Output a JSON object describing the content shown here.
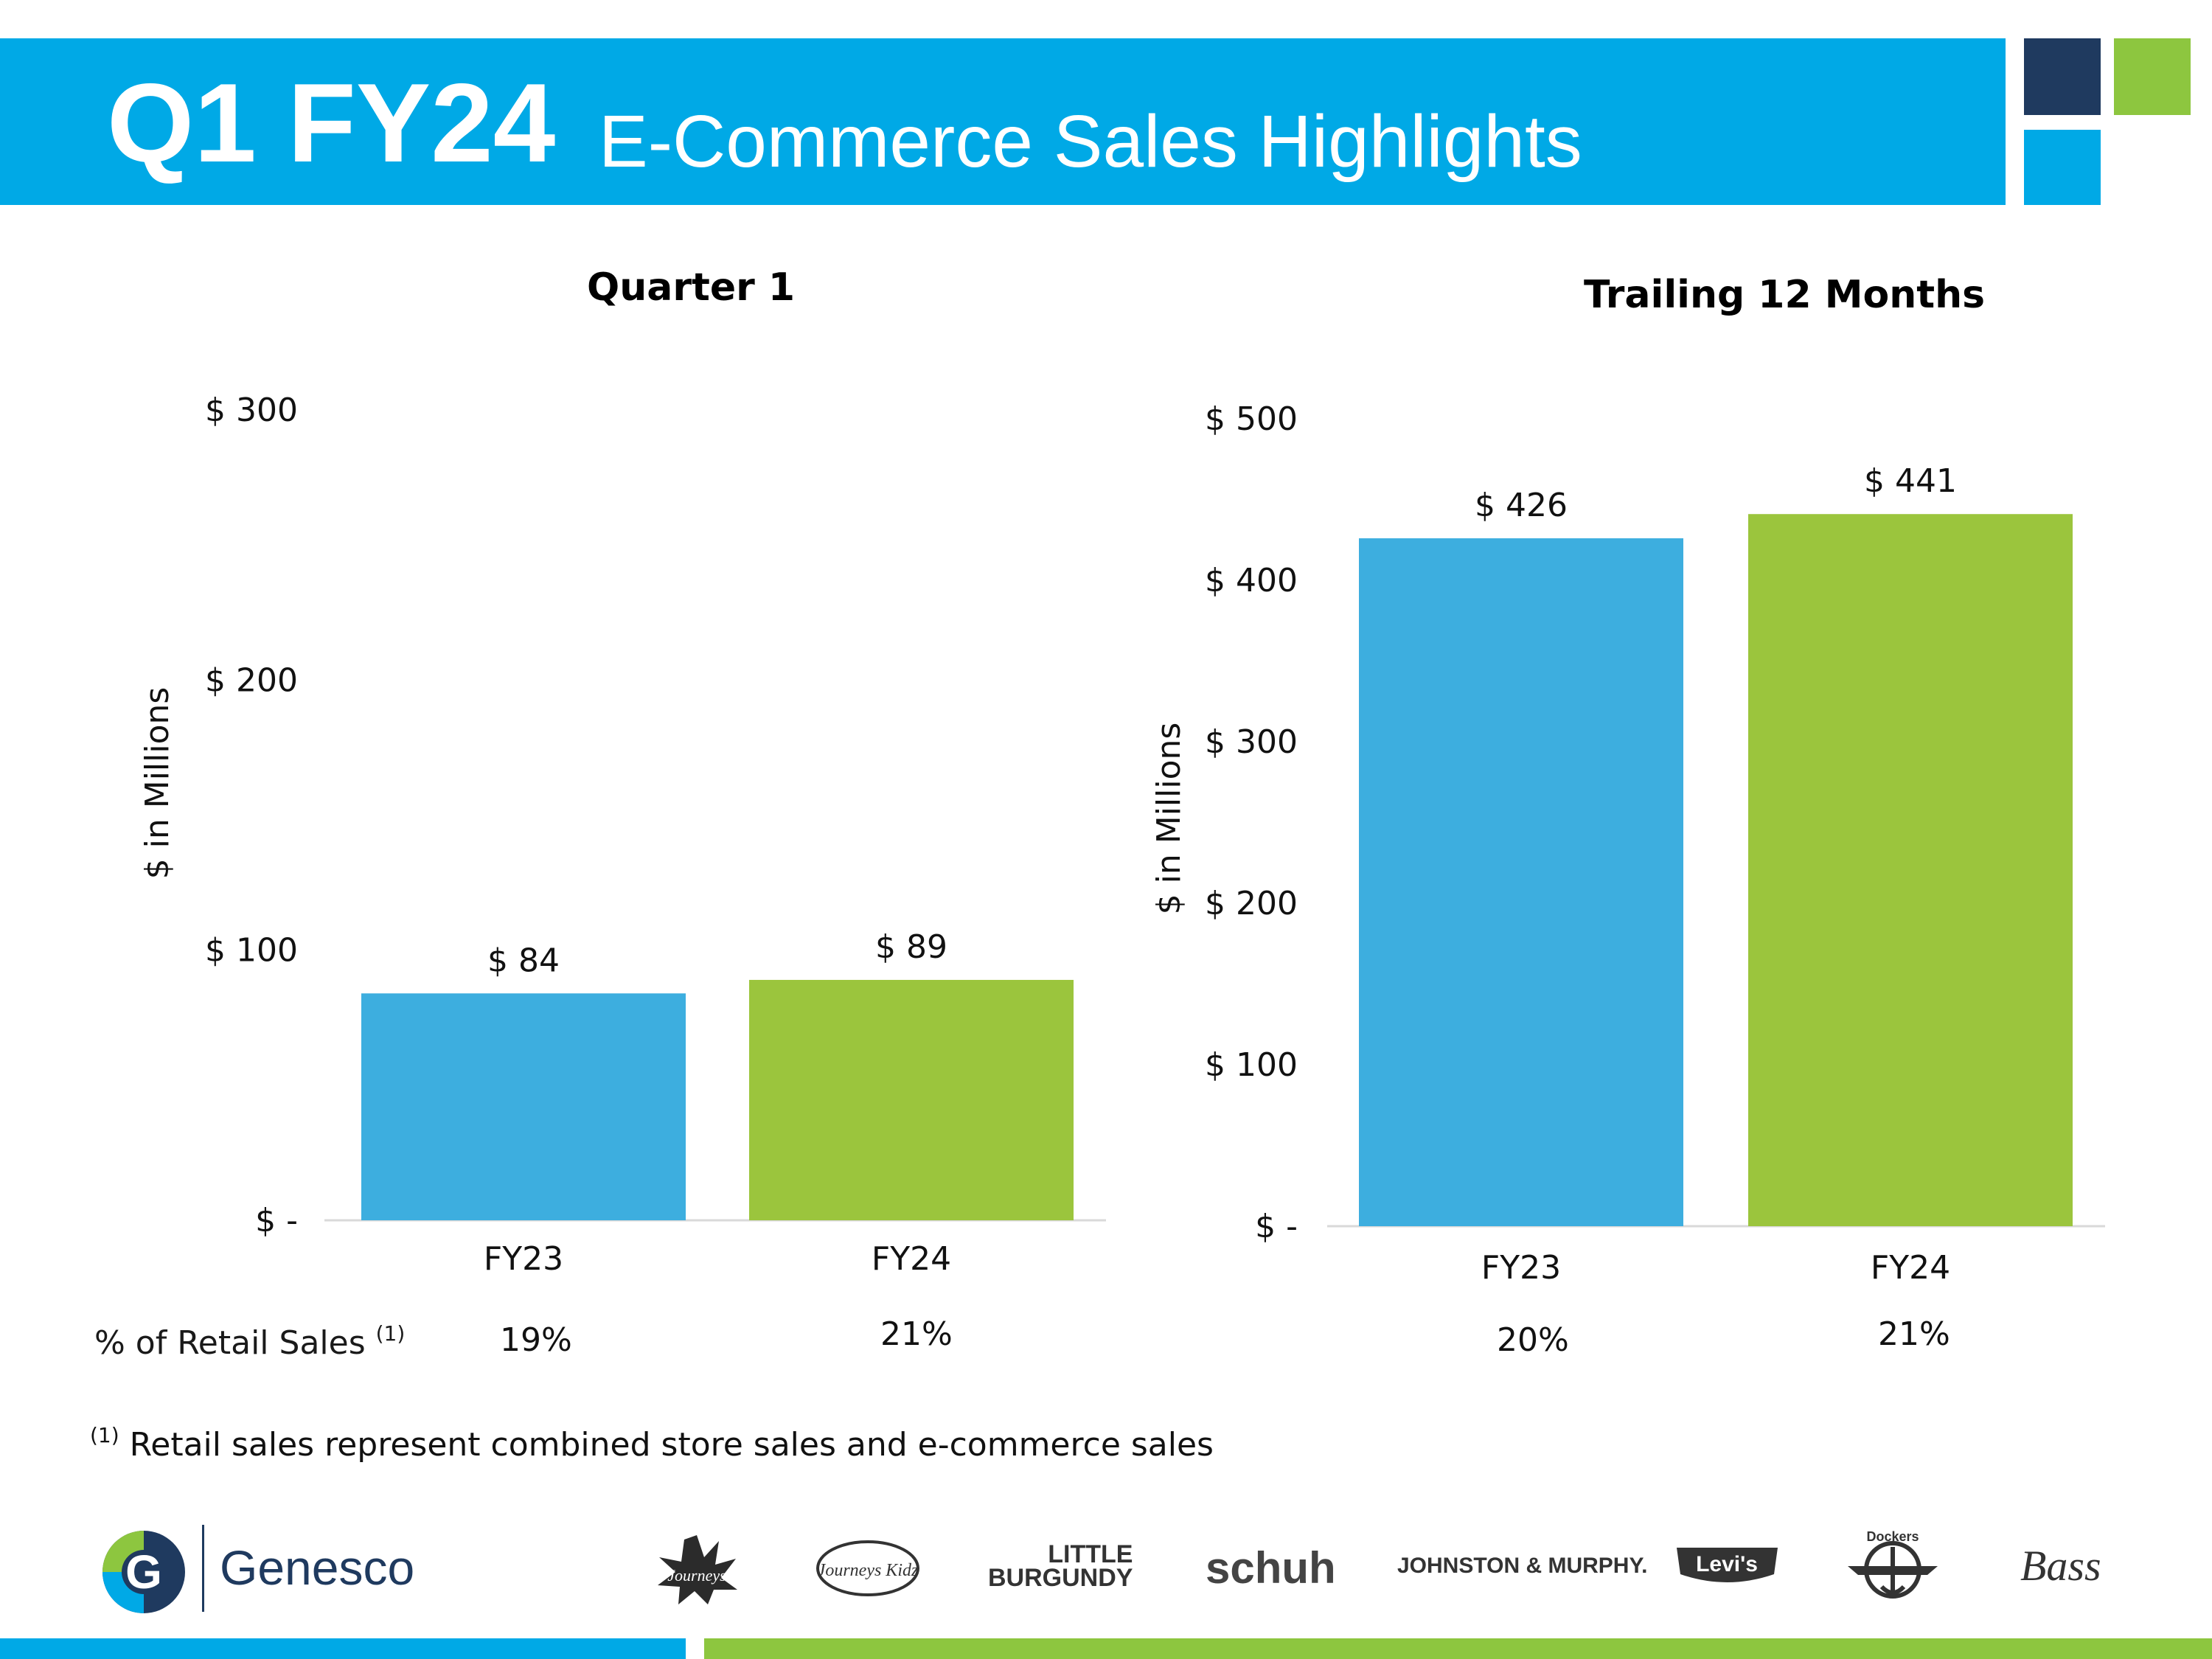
{
  "header": {
    "title_main": "Q1 FY24",
    "title_sub": "E-Commerce Sales Highlights"
  },
  "colors": {
    "header_blue": "#00a9e6",
    "navy": "#1f3a5f",
    "accent_green": "#8dc63f",
    "bar_fy23": "#3daedf",
    "bar_fy24": "#9bc53d"
  },
  "chart_data": [
    {
      "type": "bar",
      "title": "Quarter 1",
      "categories": [
        "FY23",
        "FY24"
      ],
      "values": [
        84,
        89
      ],
      "value_labels": [
        "$ 84",
        "$ 89"
      ],
      "ylabel": "$ in Millions",
      "ylim": [
        0,
        300
      ],
      "yticks": [
        0,
        100,
        200,
        300
      ],
      "ytick_labels": [
        "$ -",
        "$ 100",
        "$ 200",
        "$ 300"
      ],
      "pct_of_retail": [
        "19%",
        "21%"
      ],
      "grid": false
    },
    {
      "type": "bar",
      "title": "Trailing 12 Months",
      "categories": [
        "FY23",
        "FY24"
      ],
      "values": [
        426,
        441
      ],
      "value_labels": [
        "$ 426",
        "$ 441"
      ],
      "ylabel": "$ in Millions",
      "ylim": [
        0,
        500
      ],
      "yticks": [
        0,
        100,
        200,
        300,
        400,
        500
      ],
      "ytick_labels": [
        "$ -",
        "$ 100",
        "$ 200",
        "$ 300",
        "$ 400",
        "$ 500"
      ],
      "pct_of_retail": [
        "20%",
        "21%"
      ],
      "grid": false
    }
  ],
  "pct_row_label": "% of Retail Sales",
  "footnote_marker": "(1)",
  "footnote_text": "Retail sales represent combined store sales and e-commerce sales",
  "logos": {
    "company": "Genesco",
    "company_initial": "G",
    "brands": [
      "Journeys",
      "Journeys Kidz",
      "LITTLE",
      "BURGUNDY",
      "schuh",
      "JOHNSTON & MURPHY.",
      "Levi's",
      "Dockers",
      "Bass"
    ]
  }
}
